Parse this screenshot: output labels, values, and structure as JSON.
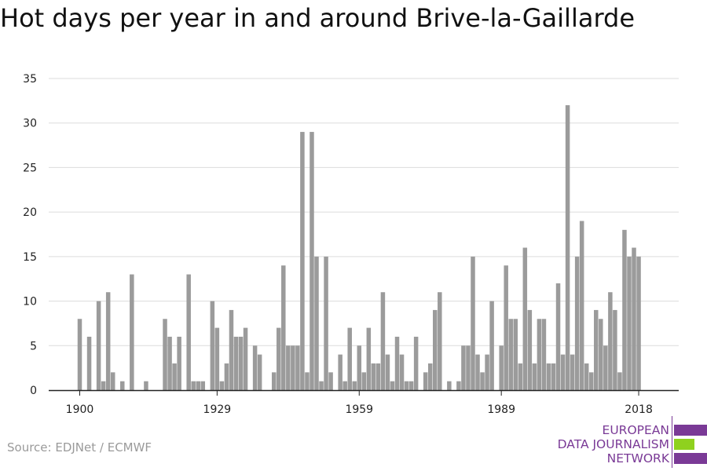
{
  "title": "Hot days per year in and around Brive-la-Gaillarde",
  "source": "Source: EDJNet / ECMWF",
  "logo": {
    "line1": "EUROPEAN",
    "line2": "DATA JOURNALISM",
    "line3": "NETWORK",
    "purple": "#7a3a96",
    "green": "#8fd11e"
  },
  "colors": {
    "bar": "#9b9b9b",
    "grid": "#dcdcdc",
    "axis": "#222222",
    "tick_text": "#222222"
  },
  "chart_data": {
    "type": "bar",
    "title": "Hot days per year in and around Brive-la-Gaillarde",
    "xlabel": "",
    "ylabel": "",
    "ylim": [
      0,
      35
    ],
    "yticks": [
      0,
      5,
      10,
      15,
      20,
      25,
      30,
      35
    ],
    "xticks": [
      1900,
      1929,
      1959,
      1989,
      2018
    ],
    "grid": "horizontal",
    "legend": "none",
    "x": [
      1900,
      1901,
      1902,
      1903,
      1904,
      1905,
      1906,
      1907,
      1908,
      1909,
      1910,
      1911,
      1912,
      1913,
      1914,
      1915,
      1916,
      1917,
      1918,
      1919,
      1920,
      1921,
      1922,
      1923,
      1924,
      1925,
      1926,
      1927,
      1928,
      1929,
      1930,
      1931,
      1932,
      1933,
      1934,
      1935,
      1936,
      1937,
      1938,
      1939,
      1940,
      1941,
      1942,
      1943,
      1944,
      1945,
      1946,
      1947,
      1948,
      1949,
      1950,
      1951,
      1952,
      1953,
      1954,
      1955,
      1956,
      1957,
      1958,
      1959,
      1960,
      1961,
      1962,
      1963,
      1964,
      1965,
      1966,
      1967,
      1968,
      1969,
      1970,
      1971,
      1972,
      1973,
      1974,
      1975,
      1976,
      1977,
      1978,
      1979,
      1980,
      1981,
      1982,
      1983,
      1984,
      1985,
      1986,
      1987,
      1988,
      1989,
      1990,
      1991,
      1992,
      1993,
      1994,
      1995,
      1996,
      1997,
      1998,
      1999,
      2000,
      2001,
      2002,
      2003,
      2004,
      2005,
      2006,
      2007,
      2008,
      2009,
      2010,
      2011,
      2012,
      2013,
      2014,
      2015,
      2016,
      2017,
      2018
    ],
    "values": [
      8,
      0,
      6,
      0,
      10,
      1,
      11,
      2,
      0,
      1,
      0,
      13,
      0,
      0,
      1,
      0,
      0,
      0,
      8,
      6,
      3,
      6,
      0,
      13,
      1,
      1,
      1,
      0,
      10,
      7,
      1,
      3,
      9,
      6,
      6,
      7,
      0,
      5,
      4,
      0,
      0,
      2,
      7,
      14,
      5,
      5,
      5,
      29,
      2,
      29,
      15,
      1,
      15,
      2,
      0,
      4,
      1,
      7,
      1,
      5,
      2,
      7,
      3,
      3,
      11,
      4,
      1,
      6,
      4,
      1,
      1,
      6,
      0,
      2,
      3,
      9,
      11,
      0,
      1,
      0,
      1,
      5,
      5,
      15,
      4,
      2,
      4,
      10,
      0,
      5,
      14,
      8,
      8,
      3,
      16,
      9,
      3,
      8,
      8,
      3,
      3,
      12,
      4,
      32,
      4,
      15,
      19,
      3,
      2,
      9,
      8,
      5,
      11,
      9,
      2,
      18,
      15,
      16,
      15
    ]
  }
}
